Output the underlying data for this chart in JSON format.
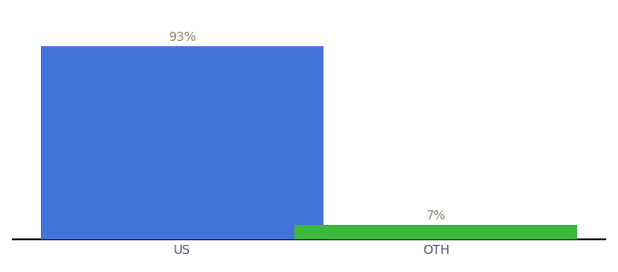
{
  "categories": [
    "US",
    "OTH"
  ],
  "values": [
    93,
    7
  ],
  "bar_colors": [
    "#4472db",
    "#3cb83c"
  ],
  "labels": [
    "93%",
    "7%"
  ],
  "background_color": "#ffffff",
  "bar_width": 0.5,
  "x_positions": [
    0.3,
    0.75
  ],
  "xlim": [
    0.0,
    1.05
  ],
  "ylim": [
    0,
    105
  ],
  "label_fontsize": 10,
  "tick_fontsize": 10,
  "label_color": "#888866",
  "tick_color": "#555577",
  "spine_color": "#111111"
}
